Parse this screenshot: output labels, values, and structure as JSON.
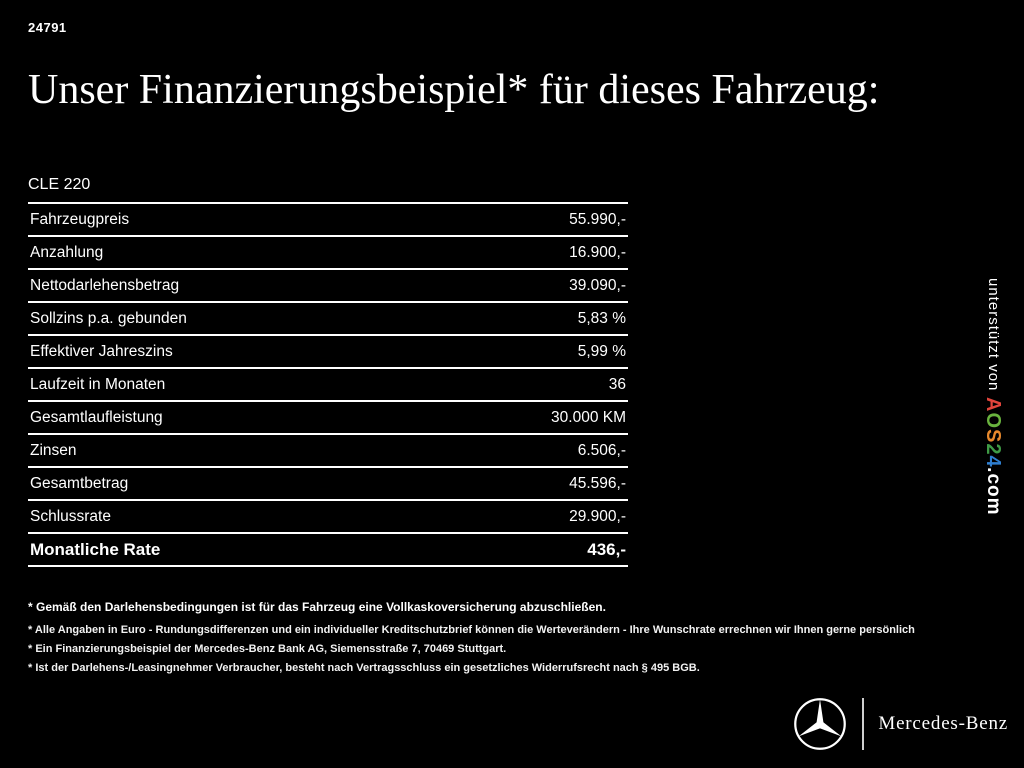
{
  "header": {
    "ref_number": "24791",
    "title": "Unser Finanzierungsbeispiel* für dieses Fahrzeug:"
  },
  "vehicle_model": "CLE 220",
  "finance_table": {
    "rows": [
      {
        "label": "Fahrzeugpreis",
        "value": "55.990,-",
        "bold": false
      },
      {
        "label": "Anzahlung",
        "value": "16.900,-",
        "bold": false
      },
      {
        "label": "Nettodarlehensbetrag",
        "value": "39.090,-",
        "bold": false
      },
      {
        "label": "Sollzins p.a. gebunden",
        "value": "5,83 %",
        "bold": false
      },
      {
        "label": "Effektiver Jahreszins",
        "value": "5,99 %",
        "bold": false
      },
      {
        "label": "Laufzeit in Monaten",
        "value": "36",
        "bold": false
      },
      {
        "label": "Gesamtlaufleistung",
        "value": "30.000 KM",
        "bold": false
      },
      {
        "label": "Zinsen",
        "value": "6.506,-",
        "bold": false
      },
      {
        "label": "Gesamtbetrag",
        "value": "45.596,-",
        "bold": false
      },
      {
        "label": "Schlussrate",
        "value": "29.900,-",
        "bold": false
      },
      {
        "label": "Monatliche Rate",
        "value": "436,-",
        "bold": true
      }
    ]
  },
  "sidebar": {
    "supported_by": "unterstützt von",
    "brand_letters": [
      {
        "char": "A",
        "color": "#e2453c"
      },
      {
        "char": "O",
        "color": "#69b33e"
      },
      {
        "char": "S",
        "color": "#e8892d"
      },
      {
        "char": "2",
        "color": "#3f9c46"
      },
      {
        "char": "4",
        "color": "#2f7fd0"
      }
    ],
    "brand_suffix": ".com"
  },
  "footnotes": [
    "* Gemäß den Darlehensbedingungen ist für das Fahrzeug eine Vollkaskoversicherung abzuschließen.",
    "* Alle Angaben in Euro - Rundungsdifferenzen und ein individueller Kreditschutzbrief können die Werteverändern - Ihre Wunschrate errechnen wir Ihnen gerne persönlich",
    "* Ein Finanzierungsbeispiel der Mercedes-Benz Bank AG, Siemensstraße 7, 70469 Stuttgart.",
    "* Ist der Darlehens-/Leasingnehmer Verbraucher, besteht nach Vertragsschluss ein gesetzliches Widerrufsrecht nach § 495 BGB."
  ],
  "footer": {
    "brand_name": "Mercedes-Benz"
  }
}
